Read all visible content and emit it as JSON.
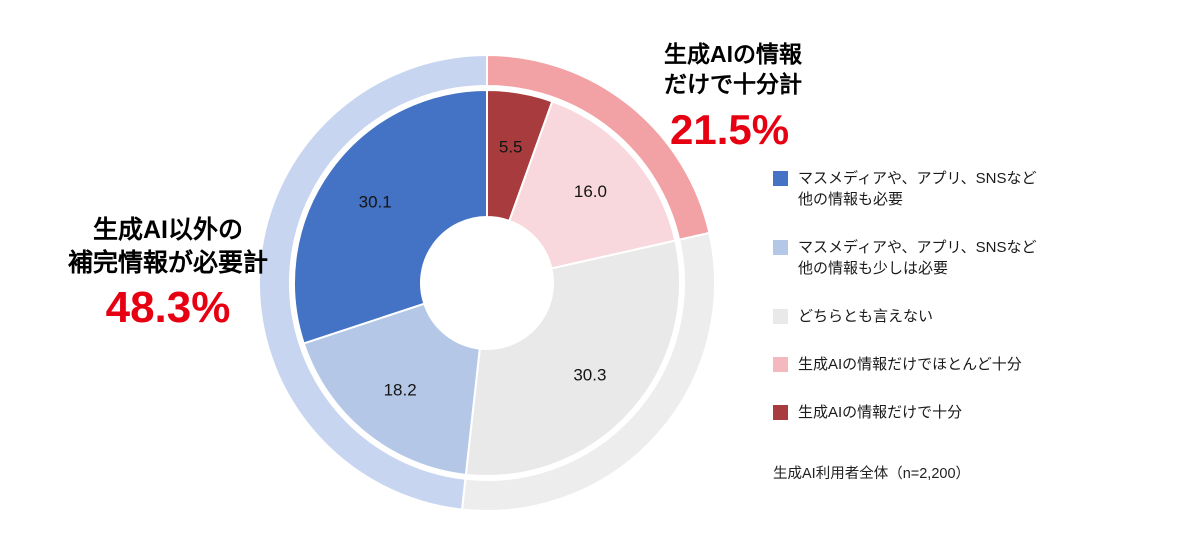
{
  "chart_data": {
    "type": "pie",
    "variant": "sunburst-donut",
    "title": "",
    "unit": "%",
    "direction": "clockwise",
    "start_angle_deg": 0,
    "categories": [
      {
        "label": "生成AIの情報だけで十分",
        "value": 5.5,
        "color": "#a83b3d"
      },
      {
        "label": "生成AIの情報だけでほとんど十分",
        "value": 16.0,
        "color": "#f9d8dd"
      },
      {
        "label": "どちらとも言えない",
        "value": 30.3,
        "color": "#e9e9e9"
      },
      {
        "label": "マスメディアや、アプリ、SNSなど他の情報も少しは必要",
        "value": 18.2,
        "color": "#b4c7e7"
      },
      {
        "label": "マスメディアや、アプリ、SNSなど他の情報も必要",
        "value": 30.1,
        "color": "#4472c4"
      }
    ],
    "groups": [
      {
        "label": "生成AIの情報だけで十分計",
        "value": 21.5,
        "color": "#f2a2a4",
        "category_indexes": [
          0,
          1
        ]
      },
      {
        "label": "どちらとも言えない",
        "value": 30.3,
        "color": "#ededed",
        "category_indexes": [
          2
        ]
      },
      {
        "label": "生成AI以外の補完情報が必要計",
        "value": 48.3,
        "color": "#c7d5f0",
        "category_indexes": [
          3,
          4
        ]
      }
    ],
    "label_color": "#141414",
    "accent_red": "#e60012"
  },
  "callouts": {
    "right": {
      "title": "生成AIの情報\nだけで十分計",
      "value": "21.5%"
    },
    "left": {
      "title": "生成AI以外の\n補完情報が必要計",
      "value": "48.3%"
    }
  },
  "legend": {
    "items": [
      {
        "label": "マスメディアや、アプリ、SNSなど\n他の情報も必要",
        "color": "#4472c4"
      },
      {
        "label": "マスメディアや、アプリ、SNSなど\n他の情報も少しは必要",
        "color": "#b4c7e7"
      },
      {
        "label": "どちらとも言えない",
        "color": "#e9e9e9"
      },
      {
        "label": "生成AIの情報だけでほとんど十分",
        "color": "#f3b9bf"
      },
      {
        "label": "生成AIの情報だけで十分",
        "color": "#a83b3d"
      }
    ]
  },
  "note": "生成AI利用者全体（n=2,200）"
}
